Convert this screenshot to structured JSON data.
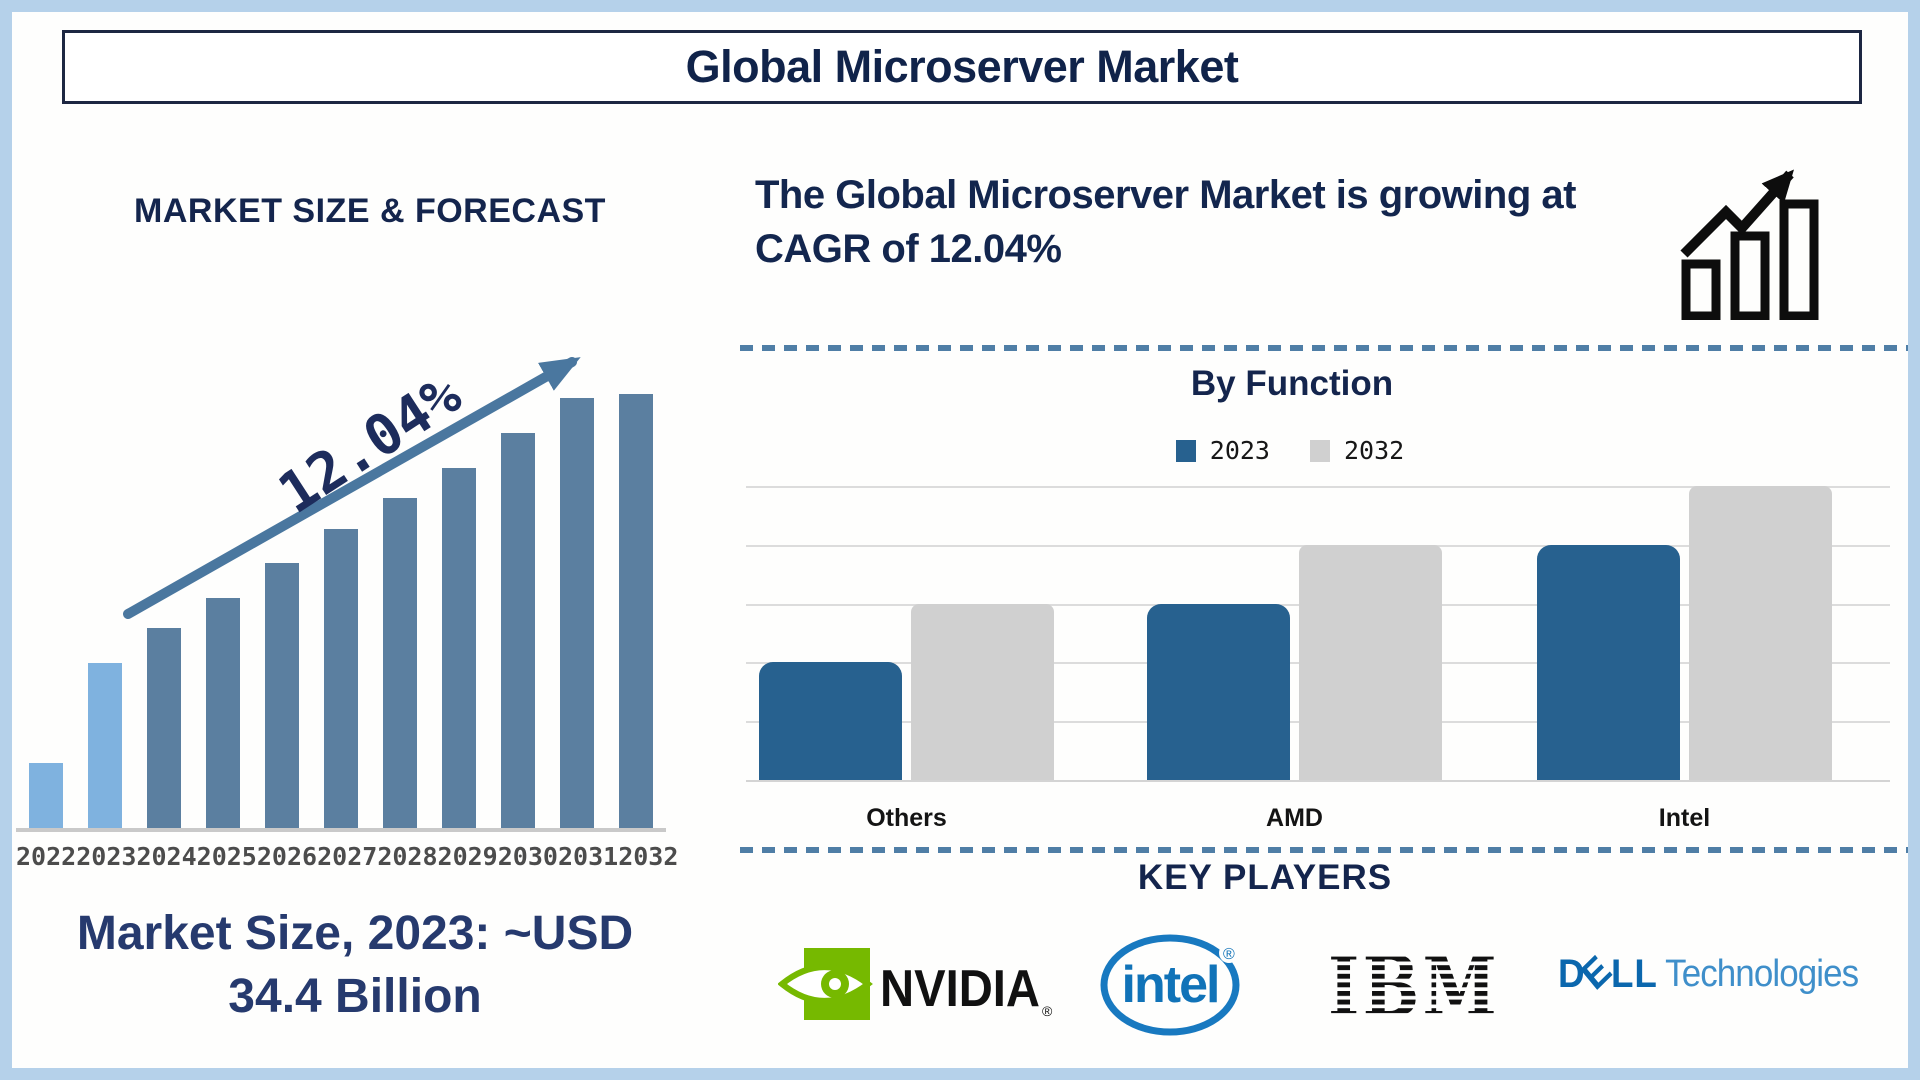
{
  "header": {
    "title": "Global Microserver Market"
  },
  "left": {
    "section_title": "MARKET SIZE & FORECAST",
    "growth_annotation": "12.04%",
    "caption_line1": "Market Size, 2023: ~USD",
    "caption_line2": "34.4 Billion"
  },
  "right": {
    "headline": "The Global Microserver Market is growing at CAGR of 12.04%",
    "by_function": {
      "title": "By Function",
      "legend": [
        {
          "label": "2023",
          "color": "#27618f"
        },
        {
          "label": "2032",
          "color": "#d0d0d0"
        }
      ]
    },
    "key_players": {
      "title": "KEY PLAYERS",
      "companies": [
        "NVIDIA",
        "intel",
        "IBM",
        "Dell Technologies"
      ]
    }
  },
  "chart_data": [
    {
      "id": "market-size-forecast",
      "type": "bar",
      "title": "MARKET SIZE & FORECAST",
      "categories": [
        "2022",
        "2023",
        "2024",
        "2025",
        "2026",
        "2027",
        "2028",
        "2029",
        "2030",
        "2031",
        "2032"
      ],
      "values_pct_of_max": [
        15,
        38,
        46,
        53,
        61,
        69,
        76,
        83,
        91,
        99,
        100
      ],
      "value_axis": "unlabeled, no gridlines",
      "annotation": "12.04%",
      "highlight": {
        "years": [
          "2022",
          "2023"
        ],
        "color": "#7fb2df"
      },
      "default_color": "#5b7fa0",
      "legend_position": "none"
    },
    {
      "id": "by-function",
      "type": "bar",
      "title": "By Function",
      "categories": [
        "Others",
        "AMD",
        "Intel"
      ],
      "series": [
        {
          "name": "2023",
          "color": "#27618f",
          "values": [
            2,
            3,
            4
          ]
        },
        {
          "name": "2032",
          "color": "#d0d0d0",
          "values": [
            3,
            4,
            5
          ]
        },
        {
          "note": "y-axis unlabeled; values are relative units read from gridlines"
        }
      ],
      "ymax": 5,
      "grid": true,
      "legend_position": "top-center"
    }
  ],
  "logos": {
    "nvidia": "NVIDIA",
    "nvidia_reg": "®",
    "intel": "intel",
    "intel_reg": "®",
    "ibm": "IBM",
    "dell_d": "D",
    "dell_e": "E",
    "dell_ll": "LL",
    "dell_tech": "Technologies"
  },
  "colors": {
    "navy_text": "#14254d",
    "bar_light_blue": "#7fb2df",
    "bar_steel_blue": "#5b7fa0",
    "arrow_blue": "#4a779f",
    "by_function_blue": "#27618f",
    "by_function_gray": "#d0d0d0",
    "dashed_divider": "#4f7ea6",
    "frame_light_blue": "#b5d1ea",
    "nvidia_green": "#76b900",
    "intel_blue": "#1173b8",
    "ibm_black": "#111111",
    "dell_blue": "#0b67ad",
    "dell_light_blue": "#3f8fca"
  }
}
